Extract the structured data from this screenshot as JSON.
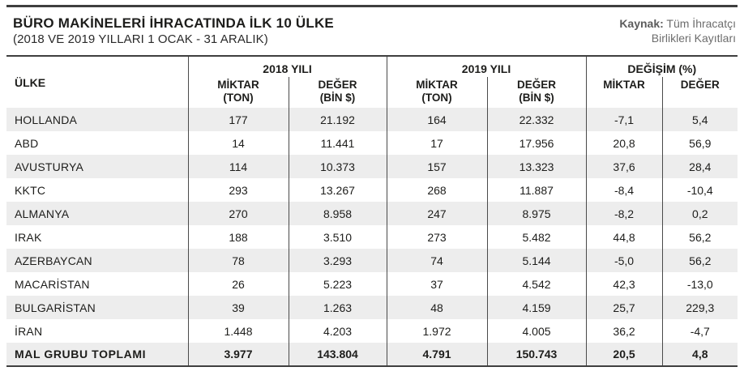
{
  "page": {
    "title": "BÜRO MAKİNELERİ İHRACATINDA İLK 10 ÜLKE",
    "subtitle": "(2018 VE 2019 YILLARI 1 OCAK - 31 ARALIK)",
    "source_label": "Kaynak:",
    "source_rest_line1": " Tüm İhracatçı",
    "source_rest_line2": "Birlikleri Kayıtları"
  },
  "colors": {
    "rule_dark": "#3f3f3f",
    "divider": "#4a4a4a",
    "row_shade": "#ededed",
    "text": "#1d1d1b",
    "source_text": "#6d6d6d"
  },
  "table": {
    "country_header": "ÜLKE",
    "groups": [
      {
        "label": "2018 YILI"
      },
      {
        "label": "2019 YILI"
      },
      {
        "label": "DEĞİŞİM (%)"
      }
    ],
    "subheaders": [
      {
        "l1": "MİKTAR",
        "l2": "(TON)"
      },
      {
        "l1": "DEĞER",
        "l2": "(BİN $)"
      },
      {
        "l1": "MİKTAR",
        "l2": "(TON)"
      },
      {
        "l1": "DEĞER",
        "l2": "(BİN $)"
      },
      {
        "l1": "MİKTAR",
        "l2": ""
      },
      {
        "l1": "DEĞER",
        "l2": ""
      }
    ],
    "rows": [
      {
        "country": "HOLLANDA",
        "cells": [
          "177",
          "21.192",
          "164",
          "22.332",
          "-7,1",
          "5,4"
        ]
      },
      {
        "country": "ABD",
        "cells": [
          "14",
          "11.441",
          "17",
          "17.956",
          "20,8",
          "56,9"
        ]
      },
      {
        "country": "AVUSTURYA",
        "cells": [
          "114",
          "10.373",
          "157",
          "13.323",
          "37,6",
          "28,4"
        ]
      },
      {
        "country": "KKTC",
        "cells": [
          "293",
          "13.267",
          "268",
          "11.887",
          "-8,4",
          "-10,4"
        ]
      },
      {
        "country": "ALMANYA",
        "cells": [
          "270",
          "8.958",
          "247",
          "8.975",
          "-8,2",
          "0,2"
        ]
      },
      {
        "country": "IRAK",
        "cells": [
          "188",
          "3.510",
          "273",
          "5.482",
          "44,8",
          "56,2"
        ]
      },
      {
        "country": "AZERBAYCAN",
        "cells": [
          "78",
          "3.293",
          "74",
          "5.144",
          "-5,0",
          "56,2"
        ]
      },
      {
        "country": "MACARİSTAN",
        "cells": [
          "26",
          "5.223",
          "37",
          "4.542",
          "42,3",
          "-13,0"
        ]
      },
      {
        "country": "BULGARİSTAN",
        "cells": [
          "39",
          "1.263",
          "48",
          "4.159",
          "25,7",
          "229,3"
        ]
      },
      {
        "country": "İRAN",
        "cells": [
          "1.448",
          "4.203",
          "1.972",
          "4.005",
          "36,2",
          "-4,7"
        ]
      },
      {
        "country": "MAL GRUBU TOPLAMI",
        "cells": [
          "3.977",
          "143.804",
          "4.791",
          "150.743",
          "20,5",
          "4,8"
        ]
      }
    ]
  },
  "chart_data": {
    "type": "table",
    "title": "BÜRO MAKİNELERİ İHRACATINDA İLK 10 ÜLKE (2018 VE 2019 YILLARI 1 OCAK - 31 ARALIK)",
    "source": "Kaynak: Tüm İhracatçı Birlikleri Kayıtları",
    "columns": [
      "ÜLKE",
      "2018 MİKTAR (TON)",
      "2018 DEĞER (BİN $)",
      "2019 MİKTAR (TON)",
      "2019 DEĞER (BİN $)",
      "DEĞİŞİM MİKTAR (%)",
      "DEĞİŞİM DEĞER (%)"
    ],
    "rows": [
      [
        "HOLLANDA",
        177,
        21192,
        164,
        22332,
        -7.1,
        5.4
      ],
      [
        "ABD",
        14,
        11441,
        17,
        17956,
        20.8,
        56.9
      ],
      [
        "AVUSTURYA",
        114,
        10373,
        157,
        13323,
        37.6,
        28.4
      ],
      [
        "KKTC",
        293,
        13267,
        268,
        11887,
        -8.4,
        -10.4
      ],
      [
        "ALMANYA",
        270,
        8958,
        247,
        8975,
        -8.2,
        0.2
      ],
      [
        "IRAK",
        188,
        3510,
        273,
        5482,
        44.8,
        56.2
      ],
      [
        "AZERBAYCAN",
        78,
        3293,
        74,
        5144,
        -5.0,
        56.2
      ],
      [
        "MACARİSTAN",
        26,
        5223,
        37,
        4542,
        42.3,
        -13.0
      ],
      [
        "BULGARİSTAN",
        39,
        1263,
        48,
        4159,
        25.7,
        229.3
      ],
      [
        "İRAN",
        1448,
        4203,
        1972,
        4005,
        36.2,
        -4.7
      ],
      [
        "MAL GRUBU TOPLAMI",
        3977,
        143804,
        4791,
        150743,
        20.5,
        4.8
      ]
    ]
  }
}
